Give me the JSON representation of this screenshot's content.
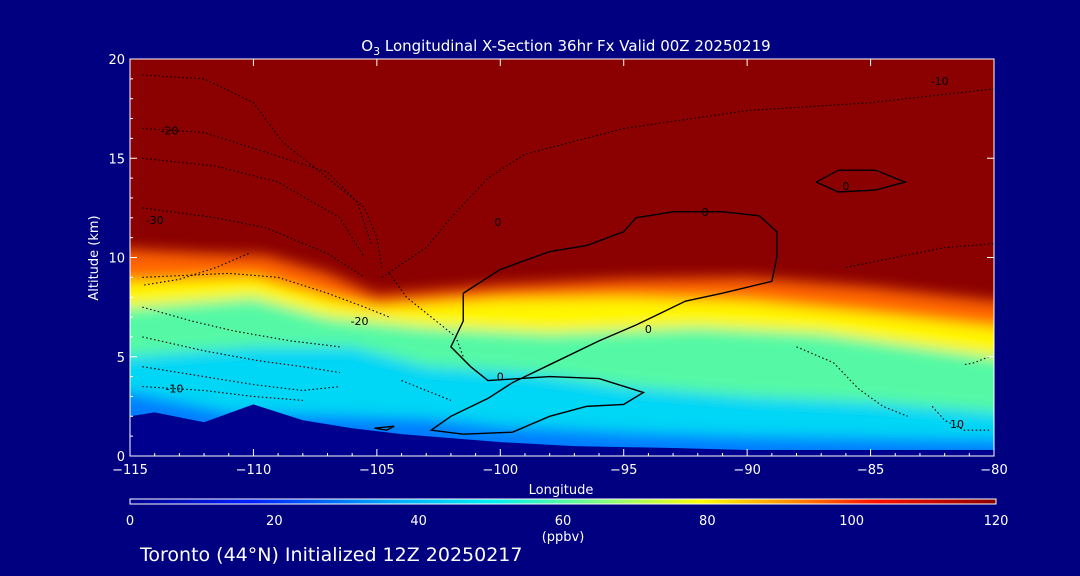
{
  "chart_data": {
    "type": "heatmap",
    "title": "O3 Longitudinal X-Section 36hr  Fx Valid 00Z 20250219",
    "title_parts": {
      "lead": "O",
      "sub": "3",
      "rest": " Longitudinal X-Section 36hr  Fx Valid 00Z 20250219"
    },
    "xlabel": "Longitude",
    "ylabel": "Altitude (km)",
    "xlim": [
      -115,
      -80
    ],
    "ylim": [
      0,
      20
    ],
    "xticks": [
      "-115",
      "-110",
      "-105",
      "-100",
      "-95",
      "-90",
      "-85",
      "-80"
    ],
    "yticks": [
      "0",
      "5",
      "10",
      "15",
      "20"
    ],
    "colorbar": {
      "label": "(ppbv)",
      "range": [
        0,
        120
      ],
      "ticks": [
        "0",
        "20",
        "40",
        "60",
        "80",
        "100",
        "120"
      ]
    },
    "ozone_layers": [
      {
        "name": "stratospheric_boundary",
        "ppbv": 120,
        "altitude_km": [
          [
            -115,
            10.4
          ],
          [
            -112,
            10.2
          ],
          [
            -109.5,
            10.1
          ],
          [
            -107,
            9.2
          ],
          [
            -105,
            8.1
          ],
          [
            -100,
            8.6
          ],
          [
            -95,
            8.9
          ],
          [
            -90,
            9.0
          ],
          [
            -85,
            8.5
          ],
          [
            -80,
            7.8
          ]
        ]
      },
      {
        "name": "upper_troposphere",
        "ppbv": 80,
        "altitude_km": [
          [
            -115,
            8.8
          ],
          [
            -110,
            9.0
          ],
          [
            -107,
            8.0
          ],
          [
            -105,
            7.5
          ],
          [
            -100,
            7.9
          ],
          [
            -95,
            8.0
          ],
          [
            -90,
            7.8
          ],
          [
            -85,
            7.2
          ],
          [
            -80,
            6.5
          ]
        ]
      },
      {
        "name": "mid_troposphere",
        "ppbv": 60,
        "altitude_km": [
          [
            -115,
            7.5
          ],
          [
            -110,
            8.0
          ],
          [
            -107,
            7.0
          ],
          [
            -103,
            6.5
          ],
          [
            -98,
            6.2
          ],
          [
            -92,
            6.5
          ],
          [
            -87,
            6.2
          ],
          [
            -80,
            5.0
          ]
        ]
      },
      {
        "name": "lower_troposphere",
        "ppbv": 45,
        "altitude_km": [
          [
            -115,
            5.0
          ],
          [
            -110,
            5.5
          ],
          [
            -106,
            5.5
          ],
          [
            -103,
            4.5
          ],
          [
            -99,
            4.2
          ],
          [
            -95,
            3.5
          ],
          [
            -90,
            3.0
          ],
          [
            -85,
            2.7
          ],
          [
            -80,
            2.2
          ]
        ]
      },
      {
        "name": "boundary_layer",
        "ppbv": 30,
        "altitude_km": [
          [
            -115,
            3.2
          ],
          [
            -111,
            2.2
          ],
          [
            -106,
            2.0
          ],
          [
            -103,
            1.9
          ],
          [
            -100,
            1.5
          ],
          [
            -95,
            1.2
          ],
          [
            -90,
            1.0
          ],
          [
            -85,
            0.9
          ],
          [
            -80,
            0.8
          ]
        ]
      }
    ],
    "terrain_km": [
      [
        -115,
        2.0
      ],
      [
        -114,
        2.2
      ],
      [
        -112,
        1.7
      ],
      [
        -110,
        2.6
      ],
      [
        -108,
        1.8
      ],
      [
        -106,
        1.4
      ],
      [
        -104,
        1.1
      ],
      [
        -102,
        0.9
      ],
      [
        -100,
        0.7
      ],
      [
        -97,
        0.5
      ],
      [
        -93,
        0.4
      ],
      [
        -90,
        0.3
      ],
      [
        -85,
        0.3
      ],
      [
        -80,
        0.3
      ]
    ],
    "contour_labels": [
      {
        "text": "-10",
        "lon": -82.2,
        "alt_km": 18.9
      },
      {
        "text": "-20",
        "lon": -113.4,
        "alt_km": 16.4
      },
      {
        "text": "-30",
        "lon": -114.0,
        "alt_km": 11.9
      },
      {
        "text": "0",
        "lon": -100.1,
        "alt_km": 11.8
      },
      {
        "text": "0",
        "lon": -91.7,
        "alt_km": 12.3
      },
      {
        "text": "0",
        "lon": -86.0,
        "alt_km": 13.6
      },
      {
        "text": "-20",
        "lon": -105.7,
        "alt_km": 6.8
      },
      {
        "text": "0",
        "lon": -94.0,
        "alt_km": 6.4
      },
      {
        "text": "0",
        "lon": -100.0,
        "alt_km": 4.0
      },
      {
        "text": "-10",
        "lon": -113.2,
        "alt_km": 3.4
      },
      {
        "text": "10",
        "lon": -81.5,
        "alt_km": 1.6
      }
    ],
    "contours_solid": [
      [
        [
          -101.5,
          8.2
        ],
        [
          -100,
          9.4
        ],
        [
          -98,
          10.3
        ],
        [
          -96.5,
          10.6
        ],
        [
          -95,
          11.3
        ],
        [
          -94.5,
          12.0
        ],
        [
          -93,
          12.3
        ],
        [
          -91,
          12.3
        ],
        [
          -89.5,
          12.1
        ],
        [
          -88.8,
          11.3
        ],
        [
          -88.8,
          10.0
        ],
        [
          -89,
          8.8
        ],
        [
          -91,
          8.2
        ],
        [
          -92.5,
          7.8
        ],
        [
          -93.5,
          7.2
        ],
        [
          -94.5,
          6.6
        ],
        [
          -96,
          5.8
        ],
        [
          -98,
          4.6
        ],
        [
          -99.5,
          3.7
        ],
        [
          -100.5,
          2.9
        ],
        [
          -102,
          2.0
        ],
        [
          -102.8,
          1.3
        ],
        [
          -101.5,
          1.1
        ],
        [
          -99.5,
          1.2
        ],
        [
          -98,
          2.0
        ],
        [
          -96.5,
          2.5
        ],
        [
          -95,
          2.6
        ],
        [
          -94.2,
          3.2
        ],
        [
          -96,
          3.9
        ],
        [
          -98,
          4.0
        ],
        [
          -100.5,
          3.8
        ],
        [
          -101.2,
          4.5
        ],
        [
          -102,
          5.5
        ],
        [
          -101.5,
          6.8
        ],
        [
          -101.5,
          8.2
        ]
      ],
      [
        [
          -87.2,
          13.8
        ],
        [
          -86.3,
          14.4
        ],
        [
          -84.8,
          14.4
        ],
        [
          -83.6,
          13.8
        ],
        [
          -84.8,
          13.4
        ],
        [
          -86.3,
          13.3
        ],
        [
          -87.2,
          13.8
        ]
      ],
      [
        [
          -105.1,
          1.4
        ],
        [
          -104.3,
          1.5
        ],
        [
          -104.6,
          1.3
        ],
        [
          -105.1,
          1.4
        ]
      ]
    ],
    "contours_dotted": [
      [
        [
          -114.5,
          19.2
        ],
        [
          -112,
          19.0
        ],
        [
          -110,
          17.8
        ],
        [
          -108.8,
          15.8
        ],
        [
          -107,
          14.0
        ],
        [
          -105.5,
          12.5
        ],
        [
          -105,
          11.0
        ],
        [
          -104.8,
          9.5
        ]
      ],
      [
        [
          -114.5,
          16.5
        ],
        [
          -112,
          16.3
        ],
        [
          -109.5,
          15.3
        ],
        [
          -107,
          14.3
        ],
        [
          -105.8,
          12.8
        ],
        [
          -105.2,
          10.6
        ]
      ],
      [
        [
          -114.5,
          15.0
        ],
        [
          -111.5,
          14.6
        ],
        [
          -109,
          13.8
        ],
        [
          -106.5,
          12.0
        ],
        [
          -105.5,
          10.0
        ]
      ],
      [
        [
          -114.5,
          12.5
        ],
        [
          -111.5,
          12.0
        ],
        [
          -109.5,
          11.5
        ],
        [
          -107,
          10.2
        ],
        [
          -105.5,
          9.0
        ]
      ],
      [
        [
          -114.5,
          9.0
        ],
        [
          -111,
          9.2
        ],
        [
          -109,
          9.0
        ],
        [
          -107,
          8.2
        ],
        [
          -105.5,
          7.5
        ],
        [
          -104.5,
          7.0
        ]
      ],
      [
        [
          -104.8,
          9.0
        ],
        [
          -103,
          10.5
        ],
        [
          -102,
          12.0
        ],
        [
          -100.5,
          14.0
        ],
        [
          -99,
          15.2
        ],
        [
          -95,
          16.5
        ],
        [
          -90,
          17.4
        ],
        [
          -85,
          17.8
        ],
        [
          -80,
          18.5
        ]
      ],
      [
        [
          -104.5,
          9.2
        ],
        [
          -103.8,
          8.0
        ],
        [
          -102.8,
          7.0
        ],
        [
          -101.8,
          6.0
        ],
        [
          -101.5,
          5.0
        ]
      ],
      [
        [
          -110.2,
          10.2
        ],
        [
          -111.5,
          9.5
        ],
        [
          -113,
          8.9
        ],
        [
          -114.5,
          8.6
        ]
      ],
      [
        [
          -114.5,
          7.5
        ],
        [
          -112.5,
          6.8
        ],
        [
          -110.8,
          6.3
        ],
        [
          -108.5,
          5.8
        ],
        [
          -106.5,
          5.5
        ]
      ],
      [
        [
          -114.5,
          6.0
        ],
        [
          -112,
          5.3
        ],
        [
          -109.8,
          4.8
        ],
        [
          -108,
          4.5
        ],
        [
          -106.5,
          4.2
        ]
      ],
      [
        [
          -114.5,
          4.5
        ],
        [
          -112.5,
          4.1
        ],
        [
          -110,
          3.6
        ],
        [
          -108,
          3.3
        ],
        [
          -106.5,
          3.5
        ]
      ],
      [
        [
          -114.5,
          3.5
        ],
        [
          -112,
          3.3
        ],
        [
          -110,
          3.0
        ],
        [
          -108,
          2.8
        ]
      ],
      [
        [
          -86,
          9.5
        ],
        [
          -82,
          10.5
        ],
        [
          -80,
          10.7
        ]
      ],
      [
        [
          -88,
          5.5
        ],
        [
          -86.5,
          4.7
        ],
        [
          -85.5,
          3.4
        ],
        [
          -84.5,
          2.5
        ],
        [
          -83.5,
          2.0
        ]
      ],
      [
        [
          -82.5,
          2.5
        ],
        [
          -82,
          1.8
        ],
        [
          -81.2,
          1.3
        ],
        [
          -80.2,
          1.3
        ]
      ],
      [
        [
          -80.2,
          5.0
        ],
        [
          -80.8,
          4.7
        ],
        [
          -81.2,
          4.6
        ]
      ],
      [
        [
          -104,
          3.8
        ],
        [
          -103,
          3.3
        ],
        [
          -102,
          2.8
        ]
      ]
    ],
    "footer": "Toronto (44°N) Initialized 12Z 20250217",
    "grid": false,
    "colors": {
      "background": "#000080",
      "saturated": "#8b0000",
      "frame": "#ffffff",
      "contour": "#000000"
    }
  }
}
